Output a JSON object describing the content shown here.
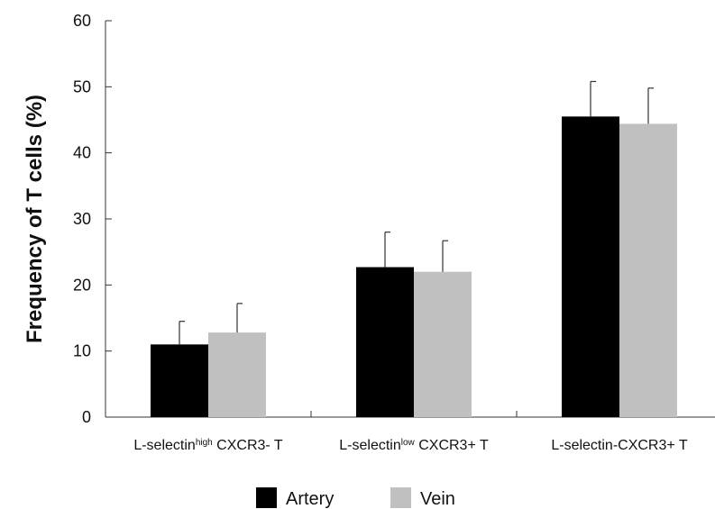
{
  "chart_data": {
    "type": "bar",
    "ylabel": "Frequency of T cells (%)",
    "ylim": [
      0,
      60
    ],
    "y_ticks": [
      0,
      10,
      20,
      30,
      40,
      50,
      60
    ],
    "categories": [
      {
        "base": "L-selectin",
        "sup": "high",
        "rest": " CXCR3- T"
      },
      {
        "base": "L-selectin",
        "sup": "low",
        "rest": " CXCR3+ T"
      },
      {
        "base": "L-selectin-CXCR3+ T",
        "sup": "",
        "rest": ""
      }
    ],
    "series": [
      {
        "name": "Artery",
        "color": "#000000",
        "values": [
          11.0,
          22.7,
          45.5
        ],
        "errors": [
          3.5,
          5.3,
          5.3
        ]
      },
      {
        "name": "Vein",
        "color": "#c0c0c0",
        "values": [
          12.8,
          22.0,
          44.4
        ],
        "errors": [
          4.4,
          4.7,
          5.4
        ]
      }
    ],
    "grid": false,
    "legend_position": "bottom"
  }
}
